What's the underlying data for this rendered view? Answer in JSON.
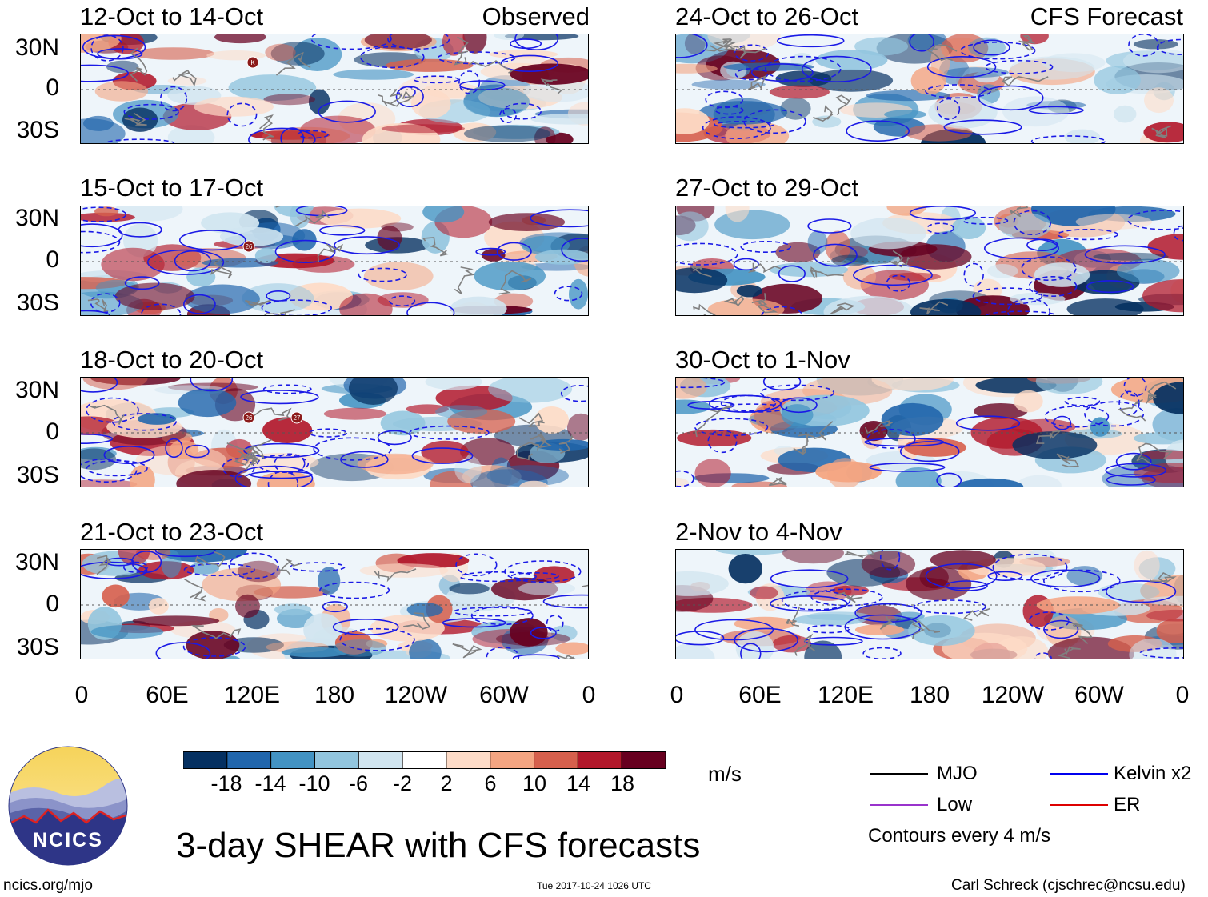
{
  "panels": [
    {
      "id": "p1",
      "title": "12-Oct to 14-Oct",
      "label": "Observed",
      "storms": [
        "K"
      ]
    },
    {
      "id": "p2",
      "title": "15-Oct to 17-Oct",
      "label": "",
      "storms": [
        "26"
      ]
    },
    {
      "id": "p3",
      "title": "18-Oct to 20-Oct",
      "label": "",
      "storms": [
        "26",
        "27"
      ]
    },
    {
      "id": "p4",
      "title": "21-Oct to 23-Oct",
      "label": "",
      "storms": []
    },
    {
      "id": "p5",
      "title": "24-Oct to 26-Oct",
      "label": "CFS Forecast",
      "storms": []
    },
    {
      "id": "p6",
      "title": "27-Oct to 29-Oct",
      "label": "",
      "storms": []
    },
    {
      "id": "p7",
      "title": "30-Oct to 1-Nov",
      "label": "",
      "storms": []
    },
    {
      "id": "p8",
      "title": "2-Nov to 4-Nov",
      "label": "",
      "storms": []
    }
  ],
  "lat_labels": [
    "30N",
    "0",
    "30S"
  ],
  "lon_labels": [
    "0",
    "60E",
    "120E",
    "180",
    "120W",
    "60W",
    "0"
  ],
  "colorbar": {
    "labels": [
      "-18",
      "-14",
      "-10",
      "-6",
      "-2",
      "2",
      "6",
      "10",
      "14",
      "18"
    ],
    "colors": [
      "#053061",
      "#2166ac",
      "#4393c3",
      "#92c5de",
      "#d1e5f0",
      "#ffffff",
      "#fddbc7",
      "#f4a582",
      "#d6604d",
      "#b2182b",
      "#67001f"
    ],
    "unit": "m/s"
  },
  "legend": {
    "items": [
      {
        "label": "MJO",
        "color": "#000000"
      },
      {
        "label": "Kelvin x2",
        "color": "#0000ee"
      },
      {
        "label": "Low",
        "color": "#9933cc"
      },
      {
        "label": "ER",
        "color": "#dd0000"
      }
    ],
    "note": "Contours every 4 m/s"
  },
  "logo": {
    "text": "NCICS"
  },
  "title": "3-day SHEAR with CFS forecasts",
  "footer": {
    "url": "ncics.org/mjo",
    "timestamp": "Tue 2017-10-24 1026 UTC",
    "credit": "Carl Schreck (cjschrec@ncsu.edu)"
  }
}
